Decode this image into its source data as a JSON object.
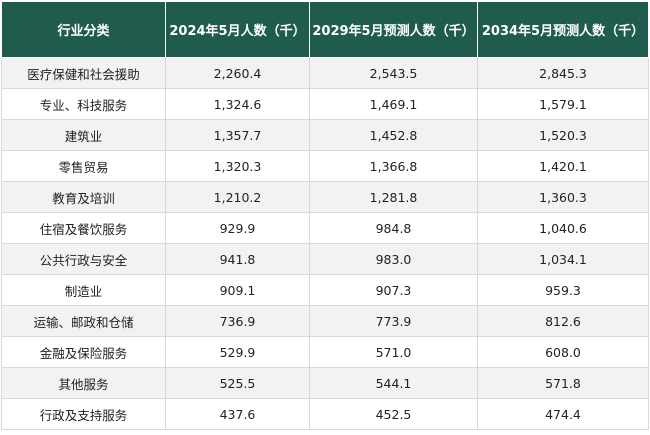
{
  "table": {
    "headers": [
      "行业分类",
      "2024年5月人数（千）",
      "2029年5月预测人数（千）",
      "2034年5月预测人数（千）"
    ],
    "rows": [
      [
        "医疗保健和社会援助",
        "2,260.4",
        "2,543.5",
        "2,845.3"
      ],
      [
        "专业、科技服务",
        "1,324.6",
        "1,469.1",
        "1,579.1"
      ],
      [
        "建筑业",
        "1,357.7",
        "1,452.8",
        "1,520.3"
      ],
      [
        "零售贸易",
        "1,320.3",
        "1,366.8",
        "1,420.1"
      ],
      [
        "教育及培训",
        "1,210.2",
        "1,281.8",
        "1,360.3"
      ],
      [
        "住宿及餐饮服务",
        "929.9",
        "984.8",
        "1,040.6"
      ],
      [
        "公共行政与安全",
        "941.8",
        "983.0",
        "1,034.1"
      ],
      [
        "制造业",
        "909.1",
        "907.3",
        "959.3"
      ],
      [
        "运输、邮政和仓储",
        "736.9",
        "773.9",
        "812.6"
      ],
      [
        "金融及保险服务",
        "529.9",
        "571.0",
        "608.0"
      ],
      [
        "其他服务",
        "525.5",
        "544.1",
        "571.8"
      ],
      [
        "行政及支持服务",
        "437.6",
        "452.5",
        "474.4"
      ]
    ]
  },
  "colors": {
    "header_bg": "#1f5c4e",
    "header_text": "#ffffff",
    "row_alt_bg": "#f2f2f2",
    "border": "#d9d9d9"
  }
}
